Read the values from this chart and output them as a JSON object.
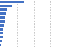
{
  "values": [
    1057,
    540,
    320,
    275,
    240,
    210,
    185,
    165,
    145,
    125,
    105,
    40
  ],
  "bar_color": "#4472c4",
  "background_color": "#ffffff",
  "xlim": [
    0,
    3000
  ],
  "grid_color": "#b0b0b0",
  "bar_height": 0.65,
  "grid_lines": [
    750,
    1500,
    2250,
    3000
  ]
}
